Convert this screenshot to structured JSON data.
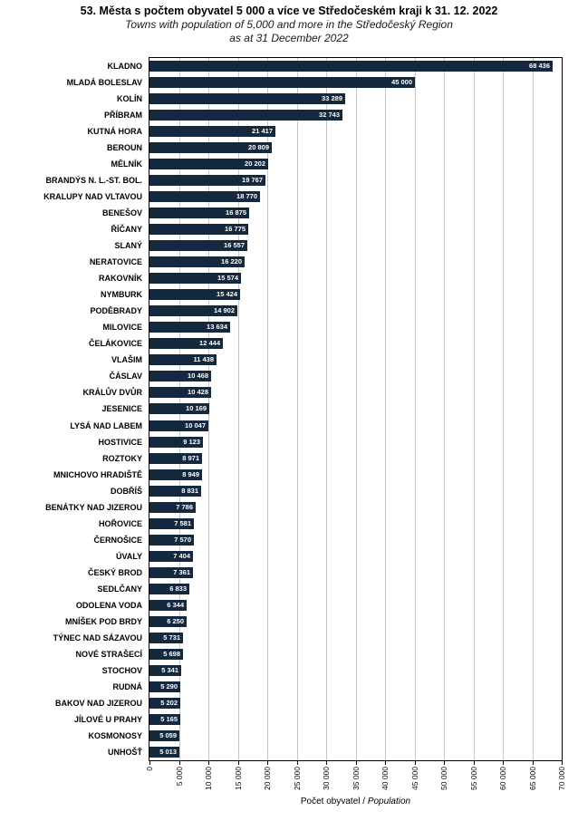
{
  "title": "53. Města s počtem obyvatel 5 000 a více ve Středočeském kraji k 31. 12. 2022",
  "subtitle1": "Towns with population of 5,000 and more in the Středočeský Region",
  "subtitle2": "as at 31 December 2022",
  "chart_data": {
    "type": "bar",
    "orientation": "horizontal",
    "title": "53. Města s počtem obyvatel 5 000 a více ve Středočeském kraji k 31. 12. 2022",
    "subtitle": "Towns with population of 5,000 and more in the Středočeský Region as at 31 December 2022",
    "categories": [
      "KLADNO",
      "MLADÁ BOLESLAV",
      "KOLÍN",
      "PŘÍBRAM",
      "KUTNÁ HORA",
      "BEROUN",
      "MĚLNÍK",
      "BRANDÝS N. L.-ST. BOL.",
      "KRALUPY NAD VLTAVOU",
      "BENEŠOV",
      "ŘÍČANY",
      "SLANÝ",
      "NERATOVICE",
      "RAKOVNÍK",
      "NYMBURK",
      "PODĚBRADY",
      "MILOVICE",
      "ČELÁKOVICE",
      "VLAŠIM",
      "ČÁSLAV",
      "KRÁLŮV DVŮR",
      "JESENICE",
      "LYSÁ NAD LABEM",
      "HOSTIVICE",
      "ROZTOKY",
      "MNICHOVO HRADIŠTĚ",
      "DOBŘÍŠ",
      "BENÁTKY NAD JIZEROU",
      "HOŘOVICE",
      "ČERNOŠICE",
      "ÚVALY",
      "ČESKÝ BROD",
      "SEDLČANY",
      "ODOLENA VODA",
      "MNÍŠEK POD BRDY",
      "TÝNEC NAD SÁZAVOU",
      "NOVÉ STRAŠECÍ",
      "STOCHOV",
      "RUDNÁ",
      "BAKOV NAD JIZEROU",
      "JÍLOVÉ U PRAHY",
      "KOSMONOSY",
      "UNHOŠŤ"
    ],
    "values": [
      68436,
      45000,
      33289,
      32743,
      21417,
      20809,
      20202,
      19767,
      18770,
      16875,
      16775,
      16557,
      16220,
      15574,
      15424,
      14902,
      13634,
      12444,
      11438,
      10468,
      10428,
      10169,
      10047,
      9123,
      8971,
      8949,
      8831,
      7786,
      7581,
      7570,
      7404,
      7361,
      6833,
      6344,
      6250,
      5731,
      5698,
      5341,
      5290,
      5202,
      5165,
      5059,
      5013
    ],
    "xlabel": "Počet obyvatel / Population",
    "xlabel_cs": "Počet obyvatel / ",
    "xlabel_en": "Population",
    "xlim": [
      0,
      70000
    ],
    "xticks": [
      0,
      5000,
      10000,
      15000,
      20000,
      25000,
      30000,
      35000,
      40000,
      45000,
      50000,
      55000,
      60000,
      65000,
      70000
    ],
    "grid": "vertical",
    "legend": "none",
    "bar_color": "#15293e",
    "gridline_color": "#c6c6c6",
    "value_label_color": "#ffffff"
  }
}
